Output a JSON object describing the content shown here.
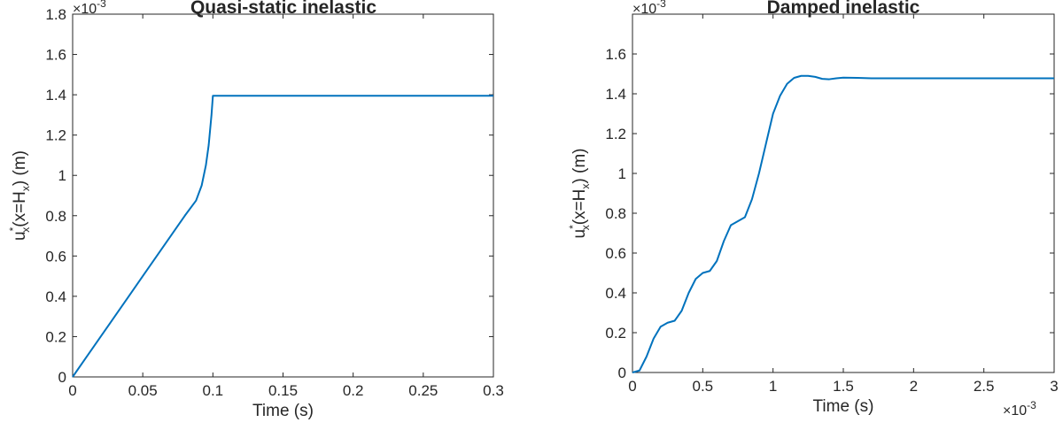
{
  "chart_data": [
    {
      "type": "line",
      "title": "Quasi-static inelastic",
      "xlabel": "Time (s)",
      "ylabel": {
        "base": "u",
        "sup": "*",
        "sub": "x",
        "rest": "(x=H",
        "sub2": "x",
        "tail": ") (m)"
      },
      "xlim": [
        0,
        0.3
      ],
      "ylim": [
        0,
        1.8
      ],
      "xticks": [
        0,
        0.05,
        0.1,
        0.15,
        0.2,
        0.25,
        0.3
      ],
      "xtick_labels": [
        "0",
        "0.05",
        "0.1",
        "0.15",
        "0.2",
        "0.25",
        "0.3"
      ],
      "yticks": [
        0,
        0.2,
        0.4,
        0.6,
        0.8,
        1,
        1.2,
        1.4,
        1.6,
        1.8
      ],
      "ytick_labels": [
        "0",
        "0.2",
        "0.4",
        "0.6",
        "0.8",
        "1",
        "1.2",
        "1.4",
        "1.6",
        "1.8"
      ],
      "y_exponent": {
        "base": "×10",
        "power": "-3"
      },
      "x_exponent": null,
      "series": [
        {
          "name": "u_x*",
          "color": "#0072BD",
          "x": [
            0,
            0.01,
            0.02,
            0.03,
            0.04,
            0.05,
            0.06,
            0.07,
            0.08,
            0.088,
            0.092,
            0.095,
            0.097,
            0.099,
            0.1,
            0.15,
            0.2,
            0.25,
            0.3
          ],
          "y": [
            0,
            0.1,
            0.2,
            0.3,
            0.4,
            0.5,
            0.6,
            0.7,
            0.8,
            0.875,
            0.95,
            1.05,
            1.15,
            1.3,
            1.395,
            1.395,
            1.395,
            1.395,
            1.395
          ]
        }
      ]
    },
    {
      "type": "line",
      "title": "Damped inelastic",
      "xlabel": "Time (s)",
      "ylabel": {
        "base": "u",
        "sup": "*",
        "sub": "x",
        "rest": "(x=H",
        "sub2": "x",
        "tail": ") (m)"
      },
      "xlim": [
        0,
        3
      ],
      "ylim": [
        0,
        1.8
      ],
      "xticks": [
        0,
        0.5,
        1,
        1.5,
        2,
        2.5,
        3
      ],
      "xtick_labels": [
        "0",
        "0.5",
        "1",
        "1.5",
        "2",
        "2.5",
        "3"
      ],
      "yticks": [
        0,
        0.2,
        0.4,
        0.6,
        0.8,
        1,
        1.2,
        1.4,
        1.6
      ],
      "ytick_labels": [
        "0",
        "0.2",
        "0.4",
        "0.6",
        "0.8",
        "1",
        "1.2",
        "1.4",
        "1.6"
      ],
      "y_exponent": {
        "base": "×10",
        "power": "-3"
      },
      "x_exponent": {
        "base": "×10",
        "power": "-3"
      },
      "series": [
        {
          "name": "u_x*",
          "color": "#0072BD",
          "x": [
            0,
            0.05,
            0.1,
            0.15,
            0.2,
            0.25,
            0.3,
            0.35,
            0.4,
            0.45,
            0.5,
            0.55,
            0.6,
            0.65,
            0.7,
            0.75,
            0.8,
            0.85,
            0.9,
            0.95,
            1.0,
            1.05,
            1.1,
            1.15,
            1.2,
            1.25,
            1.3,
            1.35,
            1.4,
            1.45,
            1.5,
            1.6,
            1.7,
            2.0,
            2.5,
            3.0
          ],
          "y": [
            0,
            0.01,
            0.08,
            0.17,
            0.23,
            0.25,
            0.26,
            0.31,
            0.4,
            0.47,
            0.5,
            0.51,
            0.56,
            0.66,
            0.74,
            0.76,
            0.78,
            0.87,
            1.0,
            1.15,
            1.3,
            1.39,
            1.45,
            1.48,
            1.49,
            1.49,
            1.485,
            1.475,
            1.473,
            1.478,
            1.481,
            1.48,
            1.478,
            1.478,
            1.478,
            1.478
          ]
        }
      ]
    }
  ]
}
